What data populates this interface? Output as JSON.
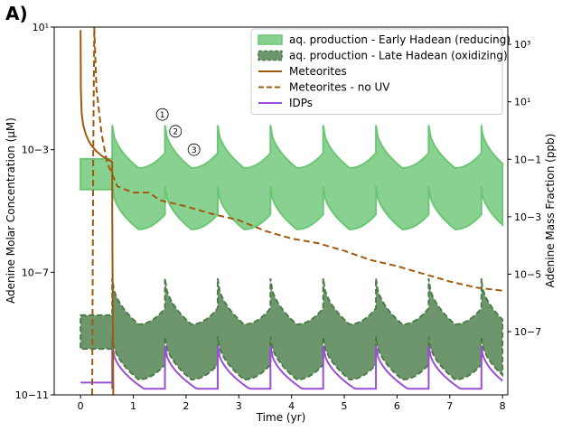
{
  "chart_data": {
    "type": "area",
    "panel_label": "A)",
    "xlabel": "Time (yr)",
    "ylabel_left": "Adenine Molar Concentration (μM)",
    "ylabel_right": "Adenine Mass Fraction (ppb)",
    "xlim": [
      -0.5,
      8.1
    ],
    "ylim_left_log10": [
      -11,
      1
    ],
    "y_scale": "log",
    "x_ticks": [
      "0",
      "1",
      "2",
      "3",
      "4",
      "5",
      "6",
      "7",
      "8"
    ],
    "y_ticks_left": [
      {
        "value": -11,
        "label": "10−11"
      },
      {
        "value": -7,
        "label": "10−7"
      },
      {
        "value": -3,
        "label": "10−3"
      },
      {
        "value": 1,
        "label": "10¹"
      }
    ],
    "y_ticks_right": [
      {
        "value": 3,
        "label": "10³"
      },
      {
        "value": 1,
        "label": "10¹"
      },
      {
        "value": -1,
        "label": "10−1"
      },
      {
        "value": -3,
        "label": "10−3"
      },
      {
        "value": -5,
        "label": "10−5"
      },
      {
        "value": -7,
        "label": "10−7"
      }
    ],
    "right_axis_range_log10": [
      -9.2,
      3.6
    ],
    "legend_position": "top-right",
    "legend": [
      {
        "label": "aq. production - Early Hadean (reducing)",
        "style": "filled-solid",
        "color": "#6cc674"
      },
      {
        "label": "aq. production - Late Hadean (oxidizing)",
        "style": "filled-dashed",
        "color": "#4a7c48"
      },
      {
        "label": "Meteorites",
        "style": "solid-line",
        "color": "#a05a0f"
      },
      {
        "label": "Meteorites - no UV",
        "style": "dashed-line",
        "color": "#a05a0f"
      },
      {
        "label": "IDPs",
        "style": "solid-line",
        "color": "#9b4fd6"
      }
    ],
    "annotations": [
      {
        "label": "1",
        "x": 1.55,
        "y_log10": -1.85
      },
      {
        "label": "2",
        "x": 1.8,
        "y_log10": -2.4
      },
      {
        "label": "3",
        "x": 2.15,
        "y_log10": -3.0
      }
    ],
    "series": [
      {
        "name": "aq. production - Early Hadean (reducing)",
        "period_yr": 1.0,
        "start_x": 0.6,
        "end_x": 8.0,
        "upper_peak_log10": -2.2,
        "upper_trough_log10": -3.6,
        "lower_peak_log10": -4.2,
        "lower_trough_log10": -5.6,
        "pre_start_x": 0.0,
        "pre_upper_log10": -3.3,
        "pre_lower_log10": -4.3
      },
      {
        "name": "aq. production - Late Hadean (oxidizing)",
        "period_yr": 1.0,
        "start_x": 0.6,
        "end_x": 8.0,
        "upper_peak_log10": -7.2,
        "upper_trough_log10": -8.7,
        "lower_peak_log10": -9.1,
        "lower_trough_log10": -10.5,
        "pre_start_x": 0.0,
        "pre_upper_log10": -8.4,
        "pre_lower_log10": -9.5
      },
      {
        "name": "Meteorites",
        "x": [
          0.0,
          0.005,
          0.02,
          0.05,
          0.1,
          0.15,
          0.2,
          0.3,
          0.4,
          0.5,
          0.6,
          0.6,
          0.62
        ],
        "y_log10": [
          0.9,
          -1.0,
          -1.8,
          -2.2,
          -2.5,
          -2.7,
          -2.85,
          -3.05,
          -3.2,
          -3.3,
          -3.4,
          -5.0,
          -11.0
        ]
      },
      {
        "name": "Meteorites - no UV",
        "x": [
          0.22,
          0.24,
          0.26,
          0.3,
          0.4,
          0.5,
          0.7,
          1.0,
          1.3,
          1.5,
          2.0,
          2.5,
          3.0,
          3.5,
          4.0,
          4.5,
          5.0,
          5.5,
          6.0,
          6.5,
          7.0,
          7.5,
          8.0
        ],
        "y_log10": [
          -11.0,
          -3.0,
          1.0,
          -1.0,
          -2.5,
          -3.4,
          -4.2,
          -4.4,
          -4.4,
          -4.65,
          -4.85,
          -5.1,
          -5.3,
          -5.65,
          -5.9,
          -6.05,
          -6.3,
          -6.6,
          -6.8,
          -7.05,
          -7.3,
          -7.5,
          -7.6
        ]
      },
      {
        "name": "IDPs",
        "period_yr": 1.0,
        "start_x": 0.0,
        "end_x": 8.0,
        "base_log10": -10.8,
        "peak_log10": -9.4,
        "pre_level_log10": -10.6
      }
    ]
  }
}
